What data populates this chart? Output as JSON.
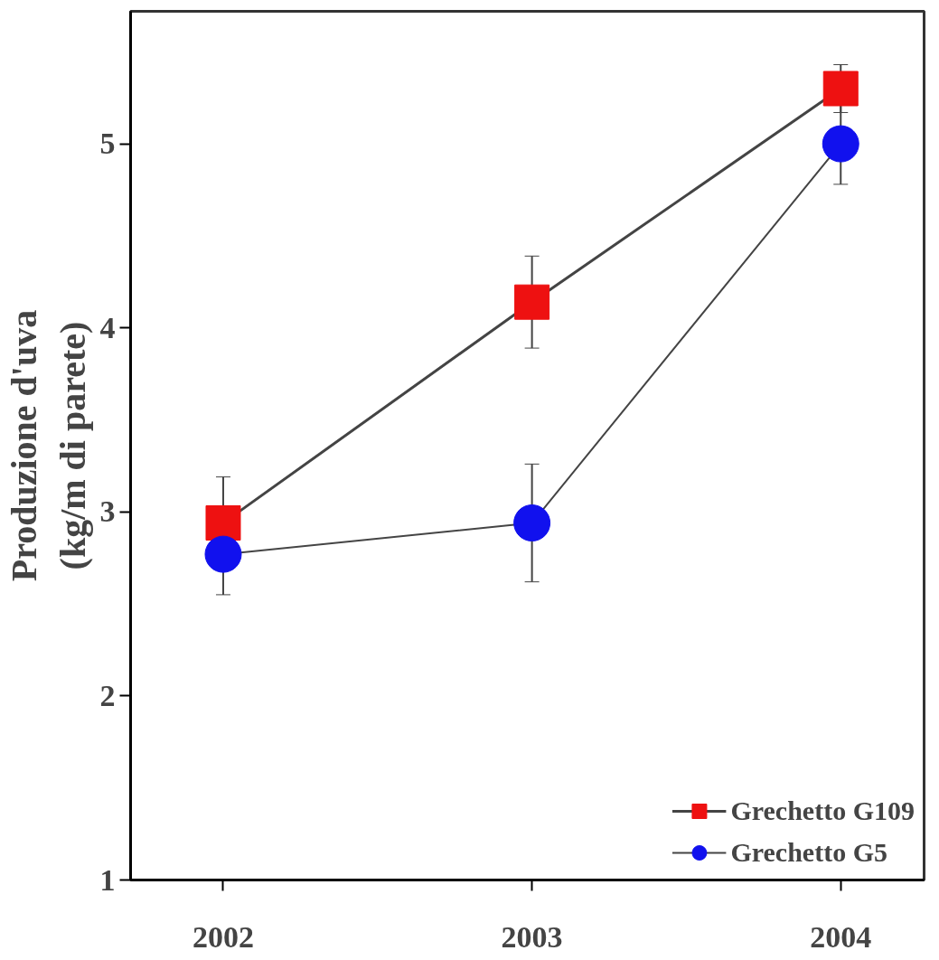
{
  "chart_data": {
    "type": "line",
    "ylabel": "Produzione d'uva\n(kg/m di parete)",
    "x": [
      2002,
      2003,
      2004
    ],
    "xlim": [
      2001.7,
      2004.27
    ],
    "xticks": [
      2002,
      2003,
      2004
    ],
    "ylim": [
      1,
      5.72
    ],
    "yticks": [
      1,
      2,
      3,
      4,
      5
    ],
    "grid": false,
    "legend": "bottom right",
    "line_style": "solid",
    "series": [
      {
        "name": "Grechetto G109",
        "color": "#ee1111",
        "marker": "square",
        "values": [
          2.94,
          4.14,
          5.3
        ],
        "errors": [
          0.25,
          0.25,
          0.13
        ]
      },
      {
        "name": "Grechetto G5",
        "color": "#1111ee",
        "marker": "circle",
        "values": [
          2.77,
          2.94,
          5.0
        ],
        "errors": [
          0.22,
          0.32,
          0.22
        ]
      }
    ]
  }
}
